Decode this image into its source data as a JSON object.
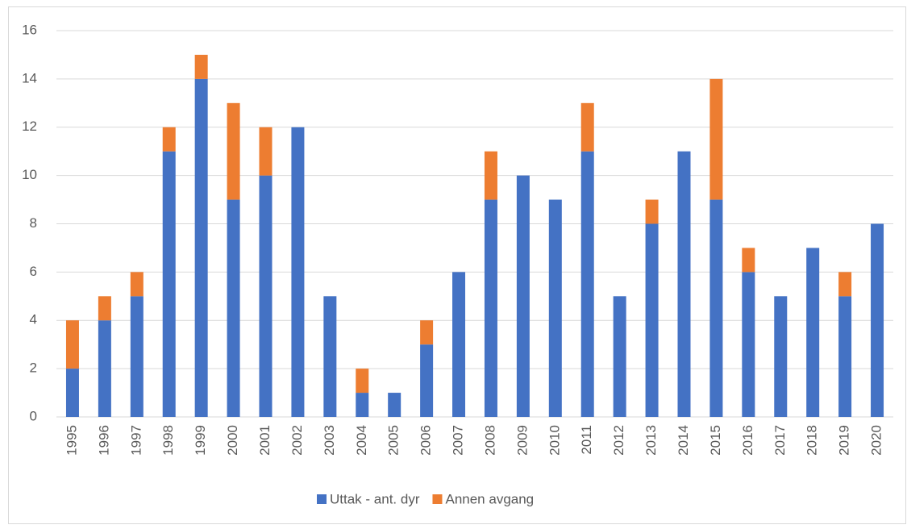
{
  "chart_data": {
    "type": "stacked_bar",
    "categories": [
      "1995",
      "1996",
      "1997",
      "1998",
      "1999",
      "2000",
      "2001",
      "2002",
      "2003",
      "2004",
      "2005",
      "2006",
      "2007",
      "2008",
      "2009",
      "2010",
      "2011",
      "2012",
      "2013",
      "2014",
      "2015",
      "2016",
      "2017",
      "2018",
      "2019",
      "2020"
    ],
    "series": [
      {
        "name": "Uttak - ant. dyr",
        "color": "#4472c4",
        "values": [
          2,
          4,
          5,
          11,
          14,
          9,
          10,
          12,
          5,
          1,
          1,
          3,
          6,
          9,
          10,
          9,
          11,
          5,
          8,
          11,
          9,
          6,
          5,
          7,
          5,
          8
        ]
      },
      {
        "name": "Annen avgang",
        "color": "#ed7d31",
        "values": [
          2,
          1,
          1,
          1,
          1,
          4,
          2,
          0,
          0,
          1,
          0,
          1,
          0,
          2,
          0,
          0,
          2,
          0,
          1,
          0,
          5,
          1,
          0,
          0,
          1,
          0
        ]
      }
    ],
    "ylim": [
      0,
      16
    ],
    "yticks": [
      0,
      2,
      4,
      6,
      8,
      10,
      12,
      14,
      16
    ],
    "grid": true,
    "legend": "bottom"
  }
}
